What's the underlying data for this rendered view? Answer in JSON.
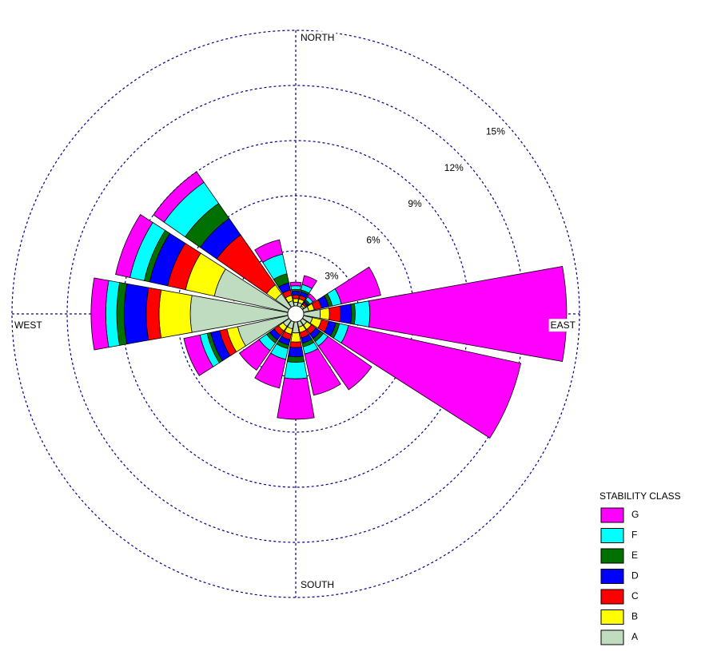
{
  "chart_data": {
    "type": "wind-rose",
    "categories": [
      "NORTH",
      null,
      null,
      null,
      "EAST",
      null,
      null,
      null,
      "SOUTH",
      null,
      null,
      null,
      "WEST",
      null,
      null,
      null
    ],
    "ylim": [
      0,
      15
    ],
    "yticks": [
      {
        "value": 3,
        "label": "3%"
      },
      {
        "value": 6,
        "label": "6%"
      },
      {
        "value": 9,
        "label": "9%"
      },
      {
        "value": 12,
        "label": "12%"
      },
      {
        "value": 15,
        "label": "15%"
      }
    ],
    "grid": true,
    "legend_title": "STABILITY CLASS",
    "legend_position": "lower right",
    "series": [
      {
        "name": "G",
        "color": "#ff00ff",
        "values": [
          0.2,
          0.5,
          0.2,
          2.2,
          10.7,
          9.6,
          2.9,
          2.3,
          2.2,
          1.6,
          1.3,
          0.9,
          0.8,
          0.8,
          0.7,
          0.8
        ]
      },
      {
        "name": "F",
        "color": "#00ffff",
        "values": [
          0.2,
          0.3,
          0.2,
          0.5,
          0.8,
          0.5,
          0.3,
          0.4,
          0.9,
          0.6,
          0.5,
          0.4,
          0.6,
          0.8,
          1.4,
          1.1
        ]
      },
      {
        "name": "E",
        "color": "#007000",
        "values": [
          0.1,
          0.1,
          0.1,
          0.2,
          0.2,
          0.2,
          0.2,
          0.2,
          0.3,
          0.2,
          0.2,
          0.2,
          0.4,
          0.3,
          1.0,
          0.5
        ]
      },
      {
        "name": "D",
        "color": "#0000ff",
        "values": [
          0.2,
          0.2,
          0.1,
          0.4,
          0.6,
          0.4,
          0.3,
          0.3,
          0.5,
          0.3,
          0.3,
          0.5,
          1.2,
          1.0,
          1.1,
          0.4
        ]
      },
      {
        "name": "C",
        "color": "#ff0000",
        "values": [
          0.2,
          0.2,
          0.1,
          0.4,
          0.6,
          0.4,
          0.3,
          0.3,
          0.3,
          0.3,
          0.3,
          0.4,
          0.7,
          1.0,
          3.3,
          0.3
        ]
      },
      {
        "name": "B",
        "color": "#ffff00",
        "values": [
          0.2,
          0.2,
          0.1,
          0.3,
          0.5,
          0.5,
          0.3,
          0.3,
          0.5,
          0.3,
          0.3,
          0.6,
          1.7,
          1.6,
          0.6,
          0.3
        ]
      },
      {
        "name": "A",
        "color": "#c0dcc0",
        "values": [
          0.2,
          0.2,
          0.1,
          0.3,
          0.9,
          0.5,
          0.3,
          0.3,
          0.6,
          0.4,
          0.4,
          2.8,
          5.3,
          4.1,
          0.9,
          0.3
        ]
      }
    ]
  }
}
